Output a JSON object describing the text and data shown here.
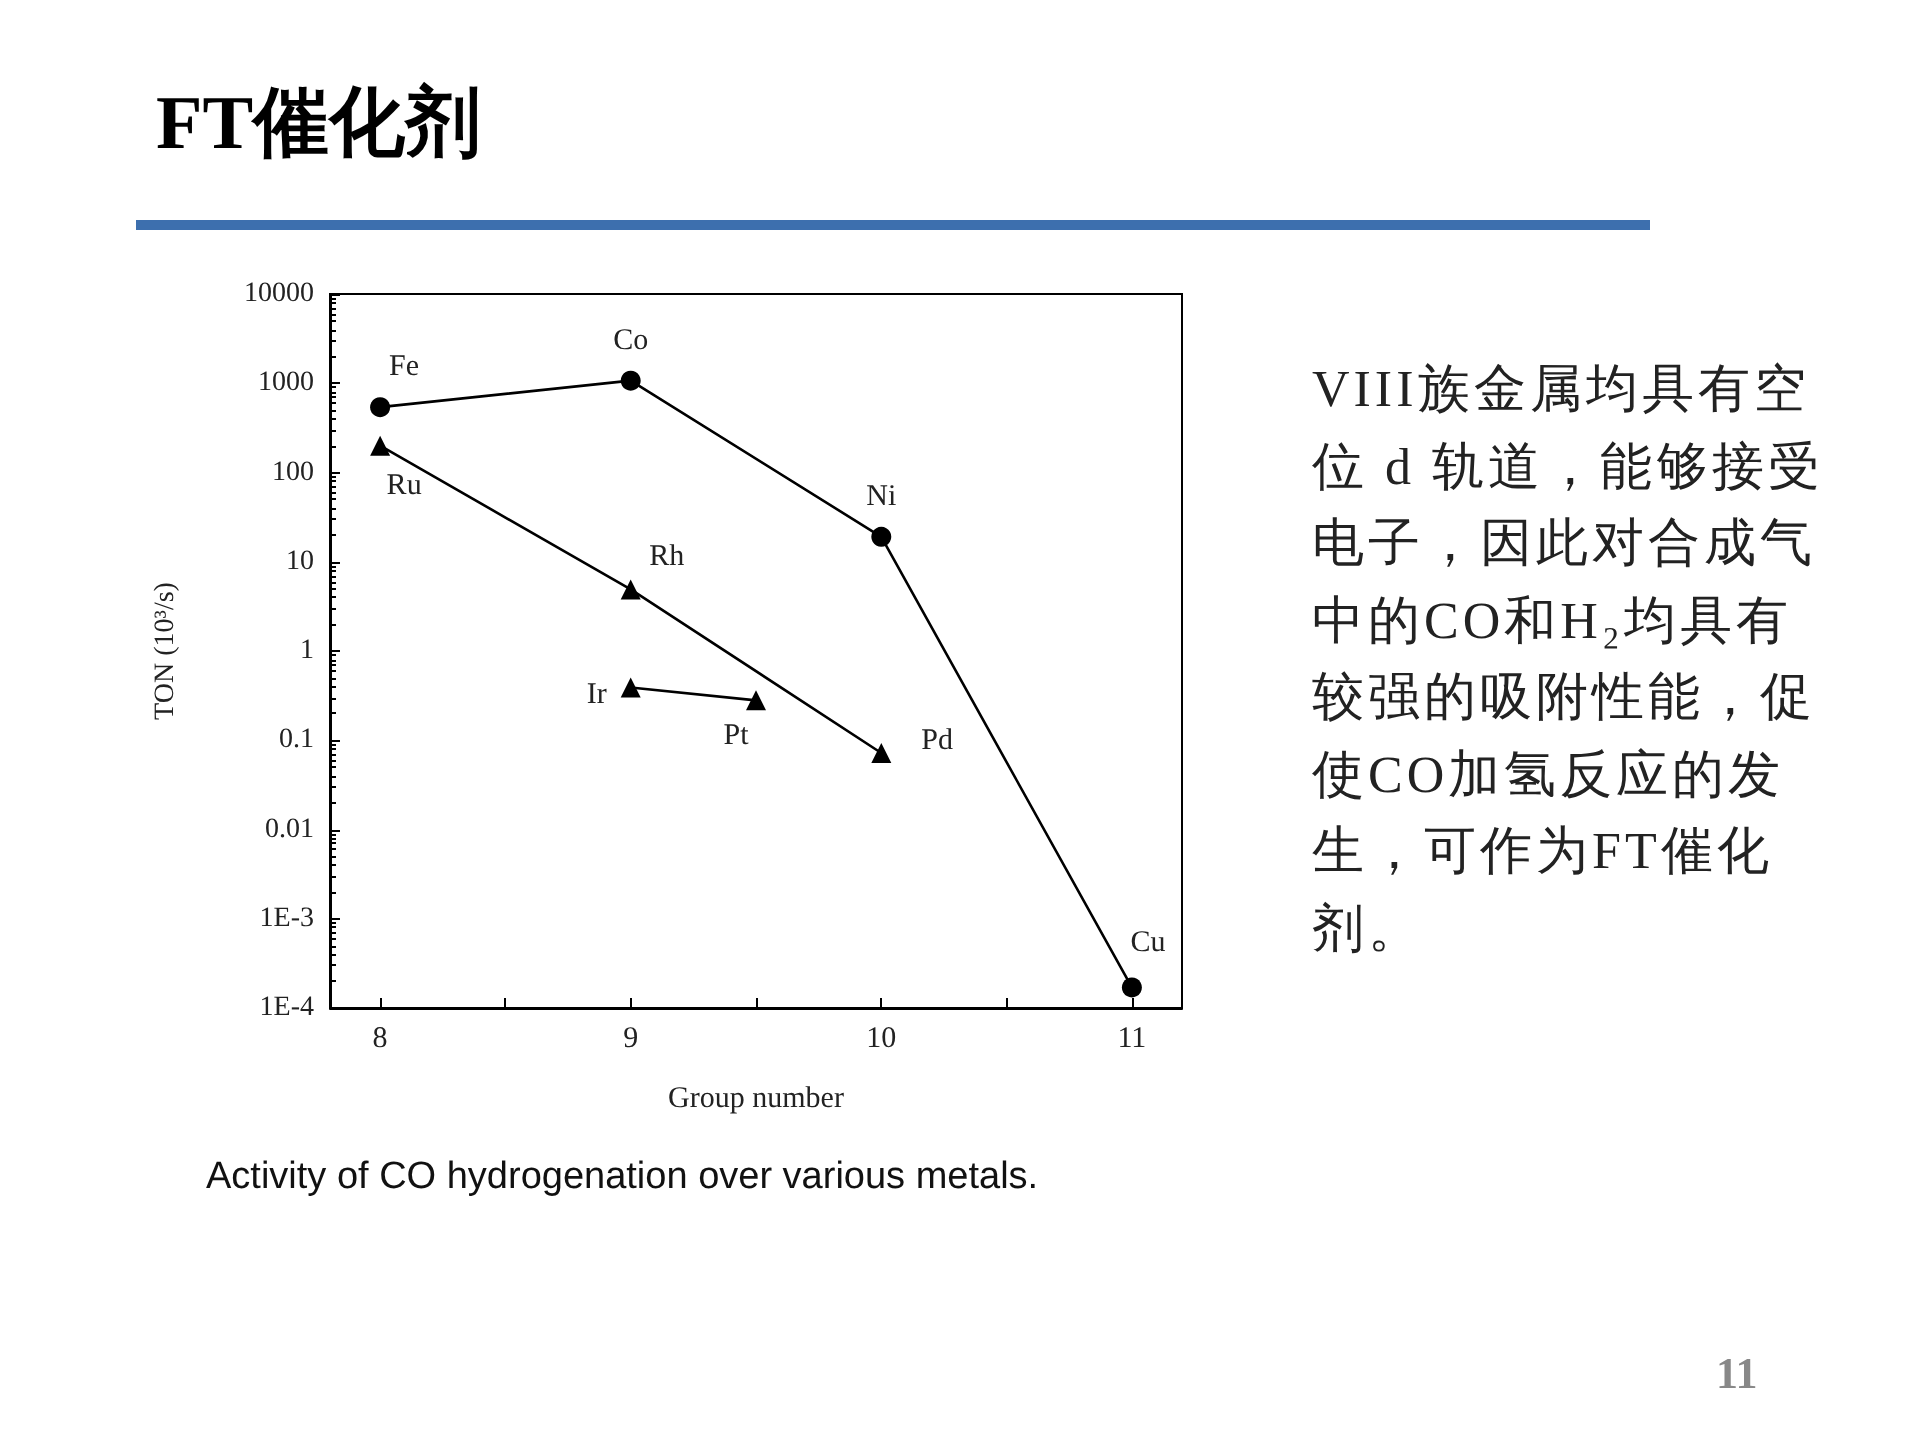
{
  "chart_data": {
    "type": "line",
    "title": "FT催化剂",
    "xlabel": "Group number",
    "ylabel": "TON (10³/s)",
    "log": "y",
    "grid": false,
    "line_style": "solid",
    "xlim": [
      7.8,
      11.2
    ],
    "xticks": [
      8,
      {
        "value": 8.5,
        "label": null
      },
      9,
      {
        "value": 9.5,
        "label": null
      },
      10,
      {
        "value": 10.5,
        "label": null
      },
      11
    ],
    "ylim": [
      0.0001,
      10000
    ],
    "yticks": [
      {
        "value": 0.0001,
        "label": "1E-4"
      },
      {
        "value": 0.001,
        "label": "1E-3"
      },
      0.01,
      0.1,
      1,
      10,
      100,
      1000,
      10000
    ],
    "series": [
      {
        "color": "#000000",
        "marker": "circle",
        "x": [
          8,
          9,
          10,
          11
        ],
        "values": [
          540,
          1070,
          19,
          0.00017
        ]
      },
      {
        "color": "#000000",
        "marker": "triangle",
        "x": [
          8,
          9,
          10
        ],
        "values": [
          200,
          4.9,
          0.072
        ]
      },
      {
        "color": "#000000",
        "marker": "triangle",
        "x": [
          9,
          9.5
        ],
        "values": [
          0.39,
          0.28
        ]
      }
    ],
    "annotations": [
      {
        "text": "Fe",
        "x": 8,
        "y": 540
      },
      {
        "text": "Co",
        "x": 9,
        "y": 1070
      },
      {
        "text": "Ni",
        "x": 10,
        "y": 19
      },
      {
        "text": "Cu",
        "x": 11,
        "y": 0.00017
      },
      {
        "text": "Ru",
        "x": 8,
        "y": 200
      },
      {
        "text": "Rh",
        "x": 9,
        "y": 4.9
      },
      {
        "text": "Pd",
        "x": 10,
        "y": 0.072
      },
      {
        "text": "Ir",
        "x": 9,
        "y": 0.39
      },
      {
        "text": "Pt",
        "x": 9.5,
        "y": 0.28
      },
      "VIII族金属均具有空位 d 轨道，能够接受电子，因此对合成气中的CO和H₂均具有较强的吸附性能，促使CO加氢反应的发生，可作为FT催化剂。",
      "Activity of CO hydrogenation over various metals.",
      "11"
    ]
  }
}
